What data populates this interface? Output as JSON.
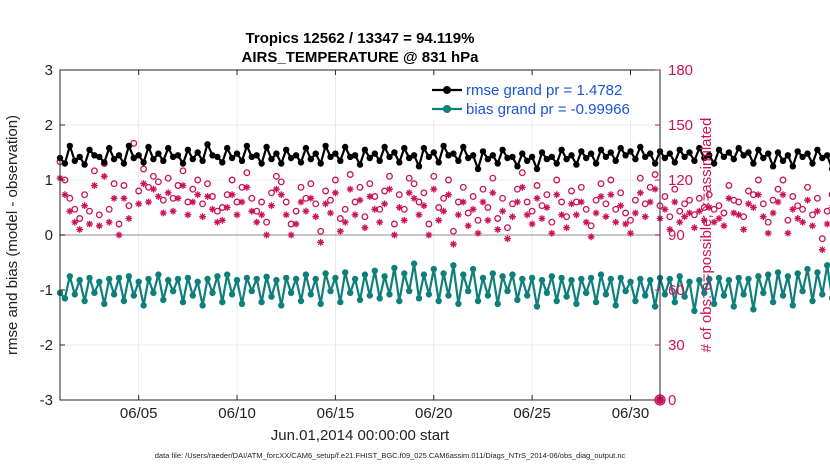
{
  "chart_data": {
    "type": "line",
    "title": "Tropics 12562 / 13347 = 94.119%",
    "subtitle": "AIRS_TEMPERATURE @ 831 hPa",
    "xlabel": "Jun.01,2014 00:00:00 start",
    "ylabel": "rmse and bias (model - observation)",
    "y2label": "# of obs: o=possible; ×=assimilated",
    "xlim": [
      1,
      31.5
    ],
    "ylim": [
      -3,
      3
    ],
    "y2lim": [
      0,
      180
    ],
    "x_ticks": [
      5,
      10,
      15,
      20,
      25,
      30
    ],
    "x_tick_labels": [
      "06/05",
      "06/10",
      "06/15",
      "06/20",
      "06/25",
      "06/30"
    ],
    "y_ticks": [
      -3,
      -2,
      -1,
      0,
      1,
      2,
      3
    ],
    "y_tick_labels": [
      "-3",
      "-2",
      "-1",
      "0",
      "1",
      "2",
      "3"
    ],
    "y2_ticks": [
      0,
      30,
      60,
      90,
      120,
      150,
      180
    ],
    "y2_tick_labels": [
      "0",
      "30",
      "60",
      "90",
      "120",
      "150",
      "180"
    ],
    "zero_line": 0,
    "series": [
      {
        "name": "rmse grand pr = 1.4782",
        "axis": "left",
        "color": "#000000",
        "marker": "filled-circle",
        "start_x": 1.0,
        "dx": 0.25,
        "values": [
          1.4,
          1.3,
          1.62,
          1.35,
          1.42,
          1.28,
          1.55,
          1.45,
          1.42,
          1.32,
          1.58,
          1.38,
          1.45,
          1.3,
          1.62,
          1.4,
          1.45,
          1.32,
          1.6,
          1.38,
          1.48,
          1.35,
          1.58,
          1.42,
          1.45,
          1.3,
          1.55,
          1.38,
          1.5,
          1.35,
          1.65,
          1.45,
          1.42,
          1.32,
          1.58,
          1.4,
          1.48,
          1.35,
          1.62,
          1.42,
          1.45,
          1.3,
          1.6,
          1.38,
          1.48,
          1.3,
          1.55,
          1.4,
          1.45,
          1.32,
          1.58,
          1.38,
          1.48,
          1.3,
          1.62,
          1.42,
          1.48,
          1.35,
          1.6,
          1.42,
          1.45,
          1.28,
          1.55,
          1.4,
          1.48,
          1.35,
          1.6,
          1.42,
          1.5,
          1.32,
          1.58,
          1.4,
          1.45,
          1.25,
          1.58,
          1.42,
          1.5,
          1.32,
          1.62,
          1.45,
          1.48,
          1.35,
          1.6,
          1.4,
          1.45,
          1.2,
          1.52,
          1.38,
          1.45,
          1.3,
          1.55,
          1.4,
          1.42,
          1.25,
          1.48,
          1.35,
          1.42,
          1.2,
          1.5,
          1.38,
          1.42,
          1.3,
          1.55,
          1.38,
          1.45,
          1.28,
          1.52,
          1.4,
          1.48,
          1.3,
          1.55,
          1.42,
          1.5,
          1.35,
          1.58,
          1.45,
          1.52,
          1.38,
          1.6,
          1.42,
          1.48,
          1.3,
          1.52,
          1.4,
          1.48,
          1.32,
          1.55,
          1.42,
          1.5,
          1.35,
          1.58,
          1.4,
          1.45,
          1.3,
          1.55,
          1.42,
          1.5,
          1.38,
          1.58,
          1.45,
          1.5,
          1.3,
          1.55,
          1.4,
          1.48,
          1.25,
          1.5,
          1.35,
          1.45,
          1.25,
          1.52,
          1.42,
          1.48,
          1.3,
          1.55,
          1.4,
          1.45,
          1.2,
          1.52,
          1.38,
          1.48,
          1.25,
          1.55,
          1.4,
          1.45,
          1.15,
          1.52,
          1.38,
          1.42,
          1.28,
          1.55,
          1.4,
          1.48,
          1.3,
          1.6,
          1.45,
          1.5,
          1.35,
          1.58,
          1.42,
          1.5,
          1.32,
          1.62,
          1.45,
          1.55,
          1.38,
          1.62,
          1.45,
          1.5,
          1.3,
          1.58,
          1.42,
          1.48,
          1.25,
          1.55,
          1.4,
          1.5,
          1.3,
          1.58,
          1.42,
          1.48,
          1.2,
          1.55,
          1.38,
          1.45,
          1.28,
          1.58,
          1.42,
          1.52,
          1.32,
          1.62,
          1.45,
          1.5,
          1.1,
          1.45,
          1.4,
          1.55,
          1.35,
          1.42,
          1.3
        ]
      },
      {
        "name": "bias grand pr = -0.99966",
        "axis": "left",
        "color": "#0f7f7c",
        "marker": "filled-circle",
        "start_x": 1.0,
        "dx": 0.25,
        "values": [
          -1.05,
          -1.15,
          -0.75,
          -1.08,
          -0.82,
          -1.2,
          -0.78,
          -1.05,
          -0.85,
          -1.25,
          -0.8,
          -1.08,
          -0.78,
          -1.2,
          -0.75,
          -1.1,
          -0.85,
          -1.28,
          -0.8,
          -1.05,
          -0.72,
          -1.18,
          -0.82,
          -1.02,
          -0.8,
          -1.22,
          -0.78,
          -1.1,
          -0.85,
          -1.28,
          -0.8,
          -1.05,
          -0.75,
          -1.22,
          -0.72,
          -1.08,
          -0.82,
          -1.25,
          -0.78,
          -1.02,
          -0.8,
          -1.22,
          -0.76,
          -1.12,
          -0.82,
          -1.28,
          -0.78,
          -1.05,
          -0.8,
          -1.2,
          -0.72,
          -1.08,
          -0.8,
          -1.25,
          -0.7,
          -1.02,
          -0.78,
          -1.22,
          -0.68,
          -1.05,
          -0.8,
          -1.18,
          -0.72,
          -1.1,
          -0.65,
          -1.15,
          -0.75,
          -1.08,
          -0.6,
          -1.2,
          -0.7,
          -1.02,
          -0.52,
          -1.15,
          -0.72,
          -1.08,
          -0.62,
          -1.2,
          -0.7,
          -1.1,
          -0.55,
          -1.25,
          -0.72,
          -1.02,
          -0.62,
          -1.2,
          -0.78,
          -1.1,
          -0.7,
          -1.25,
          -0.75,
          -1.02,
          -0.72,
          -1.18,
          -0.8,
          -1.1,
          -0.78,
          -1.3,
          -0.82,
          -1.05,
          -0.75,
          -1.2,
          -0.78,
          -1.12,
          -0.82,
          -1.25,
          -0.8,
          -1.05,
          -0.78,
          -1.22,
          -0.72,
          -1.08,
          -0.8,
          -1.28,
          -0.78,
          -1.02,
          -0.85,
          -1.2,
          -0.8,
          -1.1,
          -0.82,
          -1.3,
          -0.78,
          -1.08,
          -0.8,
          -1.22,
          -0.75,
          -1.12,
          -0.85,
          -1.38,
          -0.82,
          -1.05,
          -0.8,
          -1.25,
          -0.78,
          -1.1,
          -0.82,
          -1.3,
          -0.78,
          -1.08,
          -0.8,
          -1.35,
          -0.75,
          -1.05,
          -0.72,
          -1.22,
          -0.68,
          -1.1,
          -0.75,
          -1.28,
          -0.7,
          -1.02,
          -0.62,
          -1.2,
          -0.68,
          -1.08,
          -0.55,
          -1.15,
          -0.62,
          -1.05,
          -0.58,
          -1.25,
          -0.7,
          -1.1,
          -0.62,
          -1.28,
          -0.72,
          -1.05,
          -0.68,
          -1.22,
          -0.6,
          -1.08,
          -0.7,
          -1.3,
          -0.75,
          -1.12,
          -0.72,
          -1.25,
          -0.68,
          -1.05,
          -0.72,
          -1.32,
          -0.8,
          -1.15,
          -0.7,
          -1.28,
          -0.78,
          -1.1,
          -0.75,
          -1.35,
          -0.8,
          -1.08,
          -0.78,
          -1.25,
          -0.72,
          -1.12,
          -0.8,
          -1.3,
          -0.75,
          -1.05,
          -0.72,
          -1.38,
          -0.78,
          -1.1,
          -0.8,
          -1.32,
          -0.75,
          -1.08,
          -0.7,
          -1.4,
          -0.72,
          -1.02,
          -0.8,
          -1.3,
          -0.72,
          -1.45,
          -0.85,
          -1.2,
          -0.82
        ]
      },
      {
        "name": "obs possible",
        "axis": "right",
        "color": "#cc1357",
        "marker": "open-circle",
        "start_x": 1.0,
        "dx": 0.25,
        "values": [
          130,
          120,
          110,
          104,
          99,
          112,
          103,
          125,
          101,
          129,
          104,
          118,
          96,
          117,
          106,
          140,
          114,
          126,
          116,
          122,
          119,
          109,
          121,
          110,
          117,
          125,
          108,
          115,
          120,
          107,
          118,
          111,
          103,
          105,
          112,
          120,
          108,
          116,
          124,
          110,
          103,
          108,
          97,
          113,
          122,
          119,
          108,
          96,
          103,
          116,
          110,
          118,
          107,
          92,
          114,
          109,
          120,
          99,
          104,
          123,
          108,
          116,
          100,
          118,
          111,
          104,
          114,
          122,
          96,
          112,
          104,
          121,
          118,
          108,
          113,
          96,
          122,
          105,
          110,
          120,
          92,
          108,
          116,
          102,
          111,
          98,
          115,
          105,
          121,
          99,
          110,
          94,
          107,
          115,
          124,
          108,
          103,
          117,
          106,
          112,
          97,
          120,
          108,
          100,
          114,
          108,
          116,
          104,
          95,
          109,
          118,
          107,
          120,
          104,
          113,
          102,
          98,
          109,
          121,
          107,
          116,
          123,
          106,
          111,
          100,
          115,
          103,
          107,
          109,
          101,
          110,
          105,
          112,
          104,
          106,
          102,
          117,
          109,
          108,
          100,
          114,
          112,
          120,
          107,
          97,
          109,
          115,
          120,
          98,
          111,
          106,
          104,
          116,
          101,
          110,
          88,
          103,
          112,
          99,
          119,
          108,
          92,
          105,
          115,
          103,
          109,
          112,
          117,
          101,
          108,
          98,
          113,
          123,
          107,
          111,
          118,
          114,
          108,
          117,
          101,
          110,
          106,
          114,
          118,
          123,
          108,
          101,
          117,
          110,
          125,
          119,
          104,
          100,
          89,
          112,
          105,
          118,
          109,
          122,
          98,
          106,
          100,
          109,
          121,
          110,
          99,
          107,
          114,
          89,
          100,
          120,
          97,
          105,
          116,
          110,
          92,
          104,
          122,
          109,
          118,
          105
        ]
      },
      {
        "name": "obs assimilated",
        "axis": "right",
        "color": "#cc1357",
        "marker": "asterisk",
        "start_x": 1.0,
        "dx": 0.25,
        "values": [
          121,
          112,
          103,
          97,
          93,
          106,
          96,
          117,
          95,
          122,
          97,
          110,
          90,
          110,
          99,
          132,
          107,
          118,
          108,
          115,
          111,
          102,
          113,
          103,
          110,
          117,
          101,
          108,
          112,
          100,
          111,
          104,
          97,
          98,
          105,
          112,
          101,
          108,
          116,
          103,
          97,
          101,
          90,
          106,
          115,
          112,
          101,
          90,
          96,
          108,
          103,
          110,
          100,
          86,
          107,
          102,
          113,
          92,
          97,
          115,
          101,
          109,
          94,
          111,
          104,
          97,
          107,
          115,
          90,
          105,
          98,
          113,
          110,
          101,
          106,
          90,
          115,
          98,
          103,
          112,
          85,
          101,
          108,
          95,
          104,
          91,
          108,
          98,
          113,
          93,
          103,
          88,
          100,
          108,
          116,
          101,
          96,
          110,
          99,
          105,
          91,
          112,
          101,
          94,
          107,
          101,
          108,
          97,
          89,
          102,
          111,
          100,
          112,
          97,
          106,
          96,
          91,
          102,
          113,
          100,
          108,
          115,
          99,
          104,
          93,
          108,
          97,
          100,
          102,
          94,
          103,
          98,
          105,
          97,
          99,
          95,
          110,
          102,
          101,
          93,
          107,
          105,
          112,
          100,
          91,
          102,
          108,
          112,
          91,
          104,
          99,
          97,
          109,
          95,
          103,
          82,
          96,
          105,
          92,
          112,
          101,
          86,
          98,
          108,
          96,
          102,
          105,
          110,
          94,
          101,
          92,
          106,
          115,
          100,
          104,
          110,
          107,
          101,
          110,
          95,
          103,
          99,
          107,
          111,
          115,
          101,
          94,
          110,
          103,
          117,
          112,
          97,
          93,
          83,
          105,
          98,
          111,
          102,
          114,
          92,
          99,
          94,
          102,
          113,
          103,
          92,
          100,
          107,
          83,
          94,
          113,
          91,
          98,
          108,
          103,
          86,
          97,
          114,
          102,
          111,
          98
        ]
      }
    ],
    "legend": [
      {
        "label": "rmse grand pr = 1.4782",
        "color": "#000000"
      },
      {
        "label": "bias grand pr = -0.99966",
        "color": "#0f7f7c"
      }
    ],
    "legend_position": "top-right",
    "edge_markers": [
      {
        "axis": "right",
        "value": 0,
        "marker": "asterisk"
      },
      {
        "axis": "right",
        "value": 0,
        "marker": "open-circle"
      }
    ],
    "footnote": "data file: /Users/raeder/DAI/ATM_forcXX/CAM6_setup/f.e21.FHIST_BGC.f09_025.CAM6assim.011/Diags_NTrS_2014-06/obs_diag_output.nc"
  }
}
